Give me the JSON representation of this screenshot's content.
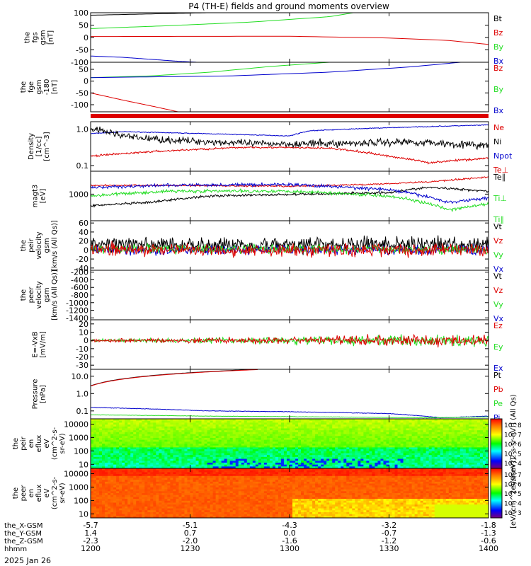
{
  "title": "P4 (TH-E) fields and ground moments overview",
  "colors": {
    "black": "#000000",
    "red": "#dd0000",
    "green": "#22dd22",
    "blue": "#0000cc"
  },
  "chart_data": {
    "type": "line",
    "title": "P4 (TH-E) fields and ground moments overview",
    "time": {
      "ticks": [
        "1200",
        "1230",
        "1300",
        "1330",
        "1400"
      ],
      "rows": [
        {
          "label": "the_X-GSM",
          "values": [
            "-5.7",
            "-5.1",
            "-4.3",
            "-3.2",
            "-1.8"
          ]
        },
        {
          "label": "the_Y-GSM",
          "values": [
            "1.4",
            "0.7",
            "0.0",
            "-0.7",
            "-1.3"
          ]
        },
        {
          "label": "the_Z-GSM",
          "values": [
            "-2.3",
            "-2.0",
            "-1.6",
            "-1.2",
            "-0.6"
          ]
        },
        {
          "label": "hhmm",
          "values": [
            "1200",
            "1230",
            "1300",
            "1330",
            "1400"
          ]
        }
      ],
      "date": "2025 Jan 26"
    },
    "panels": [
      {
        "id": "fgs",
        "ylabel": [
          "the",
          "fgs",
          "gsm",
          "[nT]"
        ],
        "ylim": [
          -100,
          100
        ],
        "yticks": [
          "100",
          "50",
          "0",
          "-50",
          "-100"
        ],
        "legend": [
          {
            "text": "Bt",
            "color": "black"
          },
          {
            "text": "Bz",
            "color": "red"
          },
          {
            "text": "By",
            "color": "green"
          },
          {
            "text": "Bx",
            "color": "blue"
          }
        ],
        "series": [
          {
            "legend": "Bt",
            "color": "black",
            "x": [
              0,
              0.35
            ],
            "y": [
              90,
              102
            ]
          },
          {
            "legend": "By",
            "color": "green",
            "x": [
              0,
              0.2,
              0.4,
              0.6,
              0.66
            ],
            "y": [
              36,
              48,
              62,
              84,
              100
            ]
          },
          {
            "legend": "Bz",
            "color": "red",
            "x": [
              0,
              0.5,
              0.75,
              0.9,
              1
            ],
            "y": [
              4,
              5,
              -2,
              -12,
              -28
            ]
          },
          {
            "legend": "Bx",
            "color": "blue",
            "x": [
              0,
              0.08,
              0.15,
              0.22,
              0.27
            ],
            "y": [
              -75,
              -80,
              -88,
              -96,
              -100
            ]
          }
        ]
      },
      {
        "id": "fge",
        "ylabel": [
          "the",
          "fge",
          "gsm",
          "-180",
          "[nT]"
        ],
        "ylim": [
          -130,
          80
        ],
        "yticks": [
          "50",
          "0",
          "-50",
          "-100"
        ],
        "legend": [
          {
            "text": "Bz",
            "color": "red"
          },
          {
            "text": "By",
            "color": "green"
          },
          {
            "text": "Bx",
            "color": "blue"
          }
        ],
        "series": [
          {
            "legend": "By",
            "color": "green",
            "x": [
              0,
              0.15,
              0.3,
              0.45,
              0.6
            ],
            "y": [
              15,
              22,
              38,
              62,
              80
            ]
          },
          {
            "legend": "Bx",
            "color": "blue",
            "x": [
              0,
              0.35,
              0.6,
              0.8,
              0.93
            ],
            "y": [
              15,
              22,
              38,
              60,
              80
            ]
          },
          {
            "legend": "Bz",
            "color": "red",
            "x": [
              0,
              0.08,
              0.16,
              0.22
            ],
            "y": [
              -50,
              -80,
              -108,
              -130
            ]
          }
        ]
      },
      {
        "id": "density",
        "ylabel": [
          "Density",
          "[1/cc]",
          "[cm^-3]"
        ],
        "ylim": [
          0.07,
          1.6
        ],
        "log": true,
        "yticks": [
          "1.0",
          "0.1"
        ],
        "legend": [
          {
            "text": "Ne",
            "color": "red"
          },
          {
            "text": "Ni",
            "color": "black"
          },
          {
            "text": "Npot",
            "color": "blue"
          },
          {
            "text": "Te⊥",
            "color": "red"
          }
        ],
        "series": [
          {
            "legend": "Npot",
            "color": "blue",
            "x": [
              0,
              0.08,
              0.5,
              0.55,
              0.7,
              1
            ],
            "y": [
              0.75,
              0.85,
              0.65,
              0.9,
              1.05,
              1.3
            ],
            "noise": 0.02
          },
          {
            "legend": "Ni",
            "color": "black",
            "x": [
              0,
              0.1,
              0.2,
              0.4,
              0.6,
              0.8,
              1
            ],
            "y": [
              1.0,
              0.6,
              0.5,
              0.4,
              0.4,
              0.45,
              0.35
            ],
            "noise": 0.18
          },
          {
            "legend": "Ne",
            "color": "red",
            "x": [
              0,
              0.15,
              0.4,
              0.6,
              0.75,
              0.85,
              1
            ],
            "y": [
              0.18,
              0.24,
              0.32,
              0.3,
              0.18,
              0.12,
              0.16
            ],
            "noise": 0.05
          }
        ]
      },
      {
        "id": "temp",
        "ylabel": [
          "magt3",
          "[eV]"
        ],
        "ylim": [
          200,
          4000
        ],
        "log": true,
        "yticks": [
          "1000"
        ],
        "legend": [
          {
            "text": "Te∥",
            "color": "black"
          },
          {
            "text": "Ti⊥",
            "color": "green"
          },
          {
            "text": "Ti∥",
            "color": "green"
          }
        ],
        "series": [
          {
            "legend": "Te∥",
            "color": "black",
            "x": [
              0,
              0.15,
              0.3,
              0.55,
              0.75,
              0.85,
              1
            ],
            "y": [
              500,
              600,
              900,
              1000,
              1100,
              1500,
              1200
            ],
            "noise": 0.06
          },
          {
            "legend": "Te⊥",
            "color": "red",
            "x": [
              0,
              0.2,
              0.5,
              0.7,
              0.85,
              1
            ],
            "y": [
              1700,
              1700,
              1600,
              1800,
              2100,
              2800
            ],
            "noise": 0.04
          },
          {
            "legend": "Ti⊥",
            "color": "blue",
            "x": [
              0,
              0.2,
              0.5,
              0.75,
              0.9,
              1
            ],
            "y": [
              1500,
              1700,
              1800,
              1300,
              600,
              800
            ],
            "noise": 0.08
          },
          {
            "legend": "Ti∥",
            "color": "green",
            "x": [
              0,
              0.2,
              0.5,
              0.75,
              0.9,
              1
            ],
            "y": [
              900,
              1200,
              1200,
              900,
              380,
              550
            ],
            "noise": 0.08
          }
        ]
      },
      {
        "id": "peir",
        "ylabel": [
          "the",
          "peir",
          "velocity",
          "gsm",
          "[km/s (All Qs)]"
        ],
        "ylim": [
          -45,
          65
        ],
        "yticks": [
          "60",
          "40",
          "20",
          "0",
          "-20",
          "-40"
        ],
        "legend": [
          {
            "text": "Vt",
            "color": "black"
          },
          {
            "text": "Vz",
            "color": "red"
          },
          {
            "text": "Vy",
            "color": "green"
          },
          {
            "text": "Vx",
            "color": "blue"
          }
        ],
        "series": [
          {
            "legend": "Vt",
            "color": "black",
            "x": [
              0,
              1
            ],
            "y": [
              12,
              12
            ],
            "noise": 14
          },
          {
            "legend": "Vx",
            "color": "blue",
            "x": [
              0,
              1
            ],
            "y": [
              0,
              0
            ],
            "noise": 8
          },
          {
            "legend": "Vy",
            "color": "green",
            "x": [
              0,
              1
            ],
            "y": [
              2,
              2
            ],
            "noise": 8
          },
          {
            "legend": "Vz",
            "color": "red",
            "x": [
              0,
              1
            ],
            "y": [
              0,
              0
            ],
            "noise": 12
          }
        ]
      },
      {
        "id": "peer",
        "ylabel": [
          "the",
          "peer",
          "velocity",
          "gsm",
          "[km/s (All Qs)]"
        ],
        "ylim": [
          -1450,
          -150
        ],
        "yticks": [
          "-200",
          "-400",
          "-600",
          "-800",
          "-1000",
          "-1200",
          "-1400"
        ],
        "legend": [
          {
            "text": "Vt",
            "color": "black"
          },
          {
            "text": "Vz",
            "color": "red"
          },
          {
            "text": "Vy",
            "color": "green"
          },
          {
            "text": "Vx",
            "color": "blue"
          }
        ],
        "series": []
      },
      {
        "id": "efield",
        "ylabel": [
          "E=-VxB",
          "[mV/m]"
        ],
        "ylim": [
          -35,
          25
        ],
        "yticks": [
          "20",
          "10",
          "0",
          "-10",
          "-20",
          "-30"
        ],
        "legend": [
          {
            "text": "Ez",
            "color": "red"
          },
          {
            "text": "Ey",
            "color": "green"
          },
          {
            "text": "Ex",
            "color": "blue"
          }
        ],
        "series": [
          {
            "legend": "Ey",
            "color": "green",
            "x": [
              0,
              1
            ],
            "y": [
              0,
              0
            ],
            "noise": 3
          },
          {
            "legend": "Ez",
            "color": "red",
            "x": [
              0,
              1
            ],
            "y": [
              0,
              0
            ],
            "noise": 3
          }
        ]
      },
      {
        "id": "pressure",
        "ylabel": [
          "Pressure",
          "[nPa]"
        ],
        "ylim": [
          0.035,
          25
        ],
        "log": true,
        "yticks": [
          "10.0",
          "1.0",
          "0.1"
        ],
        "legend": [
          {
            "text": "Pt",
            "color": "black"
          },
          {
            "text": "Pb",
            "color": "red"
          },
          {
            "text": "Pe",
            "color": "green"
          },
          {
            "text": "Pi",
            "color": "blue"
          }
        ],
        "series": [
          {
            "legend": "Pt",
            "color": "black",
            "x": [
              0,
              0.42
            ],
            "y": [
              2.8,
              25
            ]
          },
          {
            "legend": "Pb",
            "color": "red",
            "x": [
              0,
              0.42
            ],
            "y": [
              2.7,
              24
            ]
          },
          {
            "legend": "Pi",
            "color": "blue",
            "x": [
              0,
              0.3,
              0.5,
              0.75,
              0.88,
              1
            ],
            "y": [
              0.16,
              0.1,
              0.09,
              0.07,
              0.04,
              0.05
            ],
            "noise": 0.03
          },
          {
            "legend": "Pe",
            "color": "green",
            "x": [
              0,
              0.3,
              0.6,
              0.85,
              1
            ],
            "y": [
              0.06,
              0.05,
              0.045,
              0.04,
              0.045
            ],
            "noise": 0.02
          }
        ]
      },
      {
        "id": "peir_spec",
        "type": "heatmap",
        "ylabel": [
          "the",
          "peir",
          "en",
          "eflux",
          "eV",
          "(cm^2-s-",
          "sr-eV)"
        ],
        "yticks": [
          "10000",
          "1000",
          "100",
          "10"
        ],
        "colorbar": {
          "ticks": [
            "10^8",
            "10^7",
            "10^6",
            "10^5",
            "10^4"
          ],
          "unit": "[eV/(cm^2-s-sr-eV)] (All Qs)"
        }
      },
      {
        "id": "peer_spec",
        "type": "heatmap",
        "ylabel": [
          "the",
          "peer",
          "en",
          "eflux",
          "eV",
          "(cm^2-s-",
          "sr-eV)"
        ],
        "yticks": [
          "10000",
          "1000",
          "100",
          "10"
        ],
        "colorbar": {
          "ticks": [
            "10^7",
            "10^6",
            "10^5",
            "10^4",
            "10^3"
          ],
          "unit": "[eV/(cm^2-s-sr-eV)]"
        }
      }
    ]
  }
}
